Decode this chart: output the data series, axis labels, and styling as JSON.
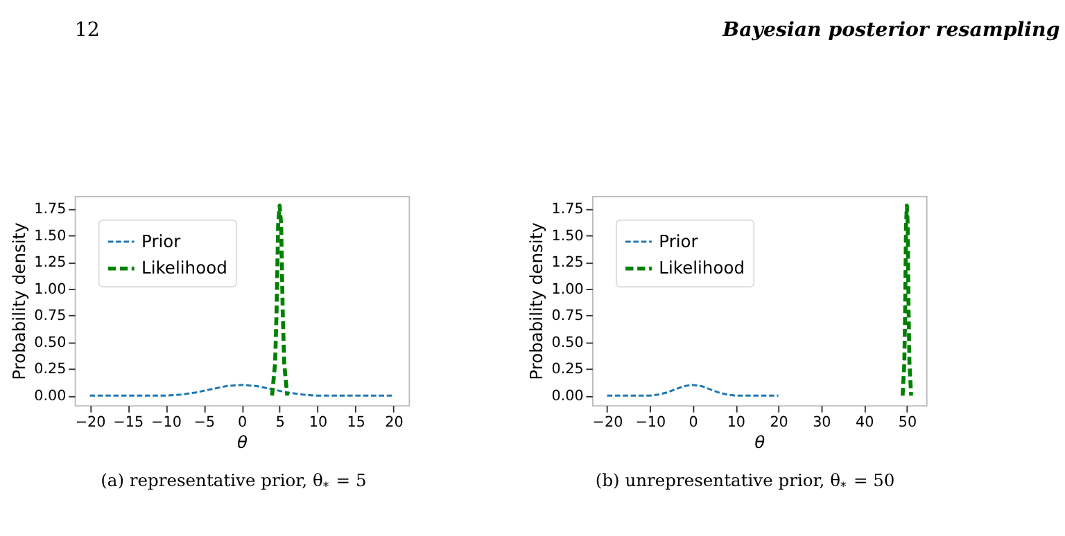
{
  "chart_data": [
    {
      "type": "line",
      "xlabel": "θ",
      "ylabel": "Probability density",
      "xlim": [
        -22,
        22
      ],
      "ylim": [
        -0.09,
        1.87
      ],
      "xticks": [
        -20,
        -15,
        -10,
        -5,
        0,
        5,
        10,
        15,
        20
      ],
      "yticks": [
        {
          "value": 0,
          "label": "0.00"
        },
        0.25,
        {
          "value": 0.5,
          "label": "0.50"
        },
        0.75,
        {
          "value": 1,
          "label": "1.00"
        },
        1.25,
        {
          "value": 1.5,
          "label": "1.50"
        },
        1.75
      ],
      "legend": "top left",
      "grid": false,
      "annotations": [
        "12",
        "Bayesian posterior resampling",
        "(a) representative prior, θ$_{*}$ = 5"
      ],
      "series": [
        {
          "name": "Prior",
          "color": "#1f77b4",
          "line_style": "dashed",
          "x": [
            -20,
            -15,
            -10,
            -8,
            -6,
            -4,
            -2,
            0,
            2,
            4,
            6,
            8,
            10,
            15,
            20
          ],
          "values": [
            0.0,
            0.0,
            0.0,
            0.01,
            0.03,
            0.06,
            0.09,
            0.1,
            0.09,
            0.06,
            0.03,
            0.01,
            0.0,
            0.0,
            0.0
          ]
        },
        {
          "name": "Likelihood",
          "color": "#008000",
          "line_style": "dashed",
          "x": [
            4.0,
            4.4,
            4.6,
            4.8,
            5.0,
            5.2,
            5.4,
            5.6,
            6.0
          ],
          "values": [
            0.0,
            0.3,
            0.8,
            1.6,
            1.78,
            1.6,
            0.8,
            0.3,
            0.0
          ]
        }
      ]
    },
    {
      "type": "line",
      "xlabel": "θ",
      "ylabel": "Probability density",
      "xlim": [
        -23.5,
        54.5
      ],
      "ylim": [
        -0.09,
        1.87
      ],
      "xticks": [
        -20,
        -10,
        0,
        10,
        20,
        30,
        40,
        50
      ],
      "yticks": [
        {
          "value": 0,
          "label": "0.00"
        },
        0.25,
        {
          "value": 0.5,
          "label": "0.50"
        },
        0.75,
        {
          "value": 1,
          "label": "1.00"
        },
        1.25,
        {
          "value": 1.5,
          "label": "1.50"
        },
        1.75
      ],
      "legend": "top left",
      "grid": false,
      "annotations": [
        "(b) unrepresentative prior, θ$_{*}$ = 50"
      ],
      "series": [
        {
          "name": "Prior",
          "color": "#1f77b4",
          "line_style": "dashed",
          "x": [
            -20,
            -15,
            -10,
            -8,
            -6,
            -4,
            -2,
            0,
            2,
            4,
            6,
            8,
            10,
            15,
            20
          ],
          "values": [
            0.0,
            0.0,
            0.0,
            0.01,
            0.03,
            0.06,
            0.09,
            0.1,
            0.09,
            0.06,
            0.03,
            0.01,
            0.0,
            0.0,
            0.0
          ]
        },
        {
          "name": "Likelihood",
          "color": "#008000",
          "line_style": "dashed",
          "x": [
            49.0,
            49.4,
            49.6,
            49.8,
            50.0,
            50.2,
            50.4,
            50.6,
            51.0
          ],
          "values": [
            0.0,
            0.3,
            0.8,
            1.6,
            1.78,
            1.6,
            0.8,
            0.3,
            0.0
          ]
        }
      ]
    }
  ]
}
